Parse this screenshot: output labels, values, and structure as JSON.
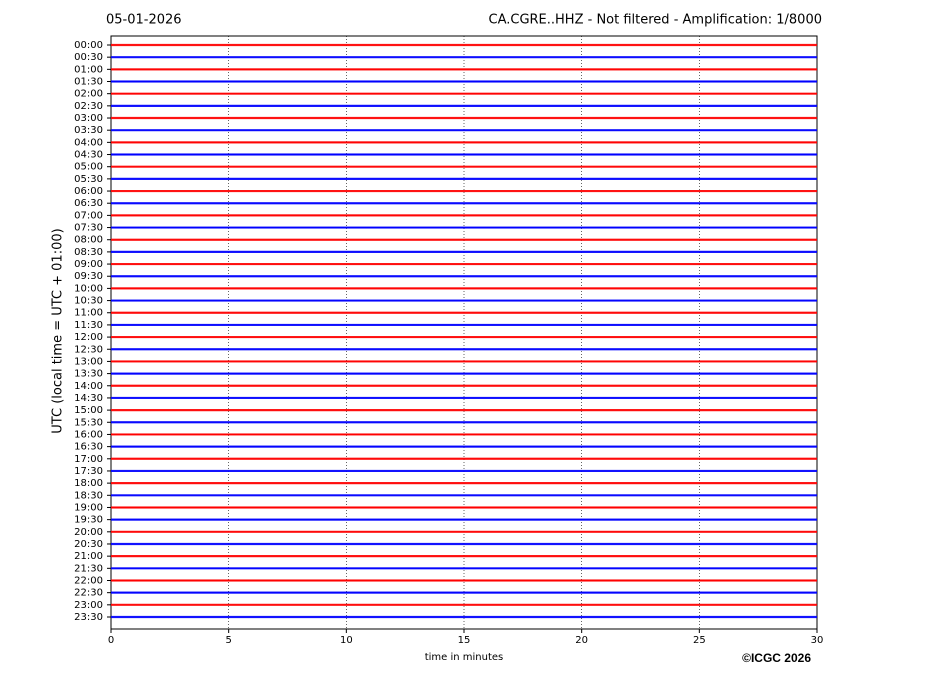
{
  "chart_data": {
    "type": "helicorder",
    "date": "05-01-2026",
    "title": "CA.CGRE..HHZ - Not filtered - Amplification: 1/8000",
    "ylabel": "UTC (local time = UTC + 01:00)",
    "xlabel": "time in minutes",
    "copyright": "©ICGC 2026",
    "categories": [
      "00:00",
      "00:30",
      "01:00",
      "01:30",
      "02:00",
      "02:30",
      "03:00",
      "03:30",
      "04:00",
      "04:30",
      "05:00",
      "05:30",
      "06:00",
      "06:30",
      "07:00",
      "07:30",
      "08:00",
      "08:30",
      "09:00",
      "09:30",
      "10:00",
      "10:30",
      "11:00",
      "11:30",
      "12:00",
      "12:30",
      "13:00",
      "13:30",
      "14:00",
      "14:30",
      "15:00",
      "15:30",
      "16:00",
      "16:30",
      "17:00",
      "17:30",
      "18:00",
      "18:30",
      "19:00",
      "19:30",
      "20:00",
      "20:30",
      "21:00",
      "21:30",
      "22:00",
      "22:30",
      "23:00",
      "23:30"
    ],
    "colors": [
      "#ff0000",
      "#0000ff"
    ],
    "xlim": [
      0,
      30
    ],
    "xticks": [
      0,
      5,
      10,
      15,
      20,
      25,
      30
    ],
    "grid": true
  }
}
